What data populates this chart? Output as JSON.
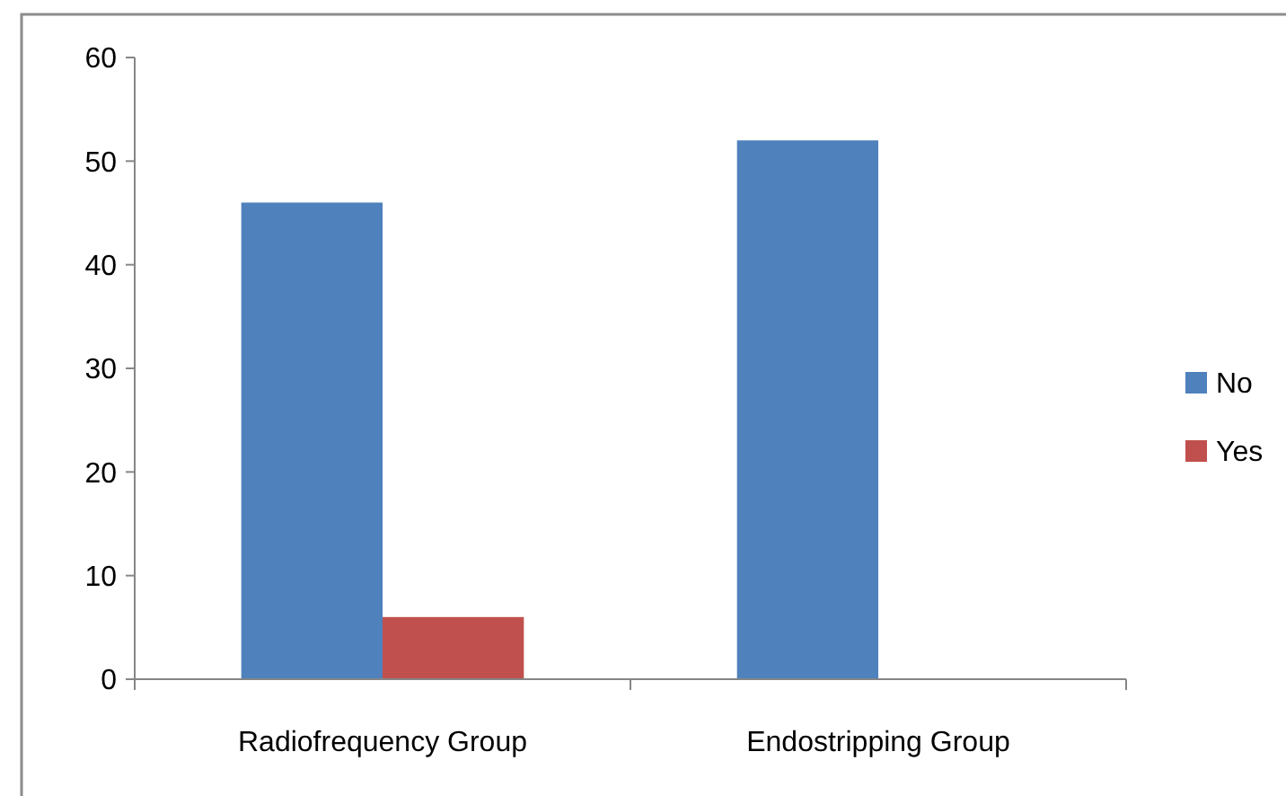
{
  "chart_data": {
    "type": "bar",
    "categories": [
      "Radiofrequency  Group",
      "Endostripping  Group"
    ],
    "series": [
      {
        "name": "No",
        "color": "#4f81bd",
        "values": [
          46,
          52
        ]
      },
      {
        "name": "Yes",
        "color": "#c0504d",
        "values": [
          6,
          0
        ]
      }
    ],
    "ylim": [
      0,
      60
    ],
    "yticks": [
      0,
      10,
      20,
      30,
      40,
      50,
      60
    ],
    "grid": false,
    "legend": "right"
  }
}
